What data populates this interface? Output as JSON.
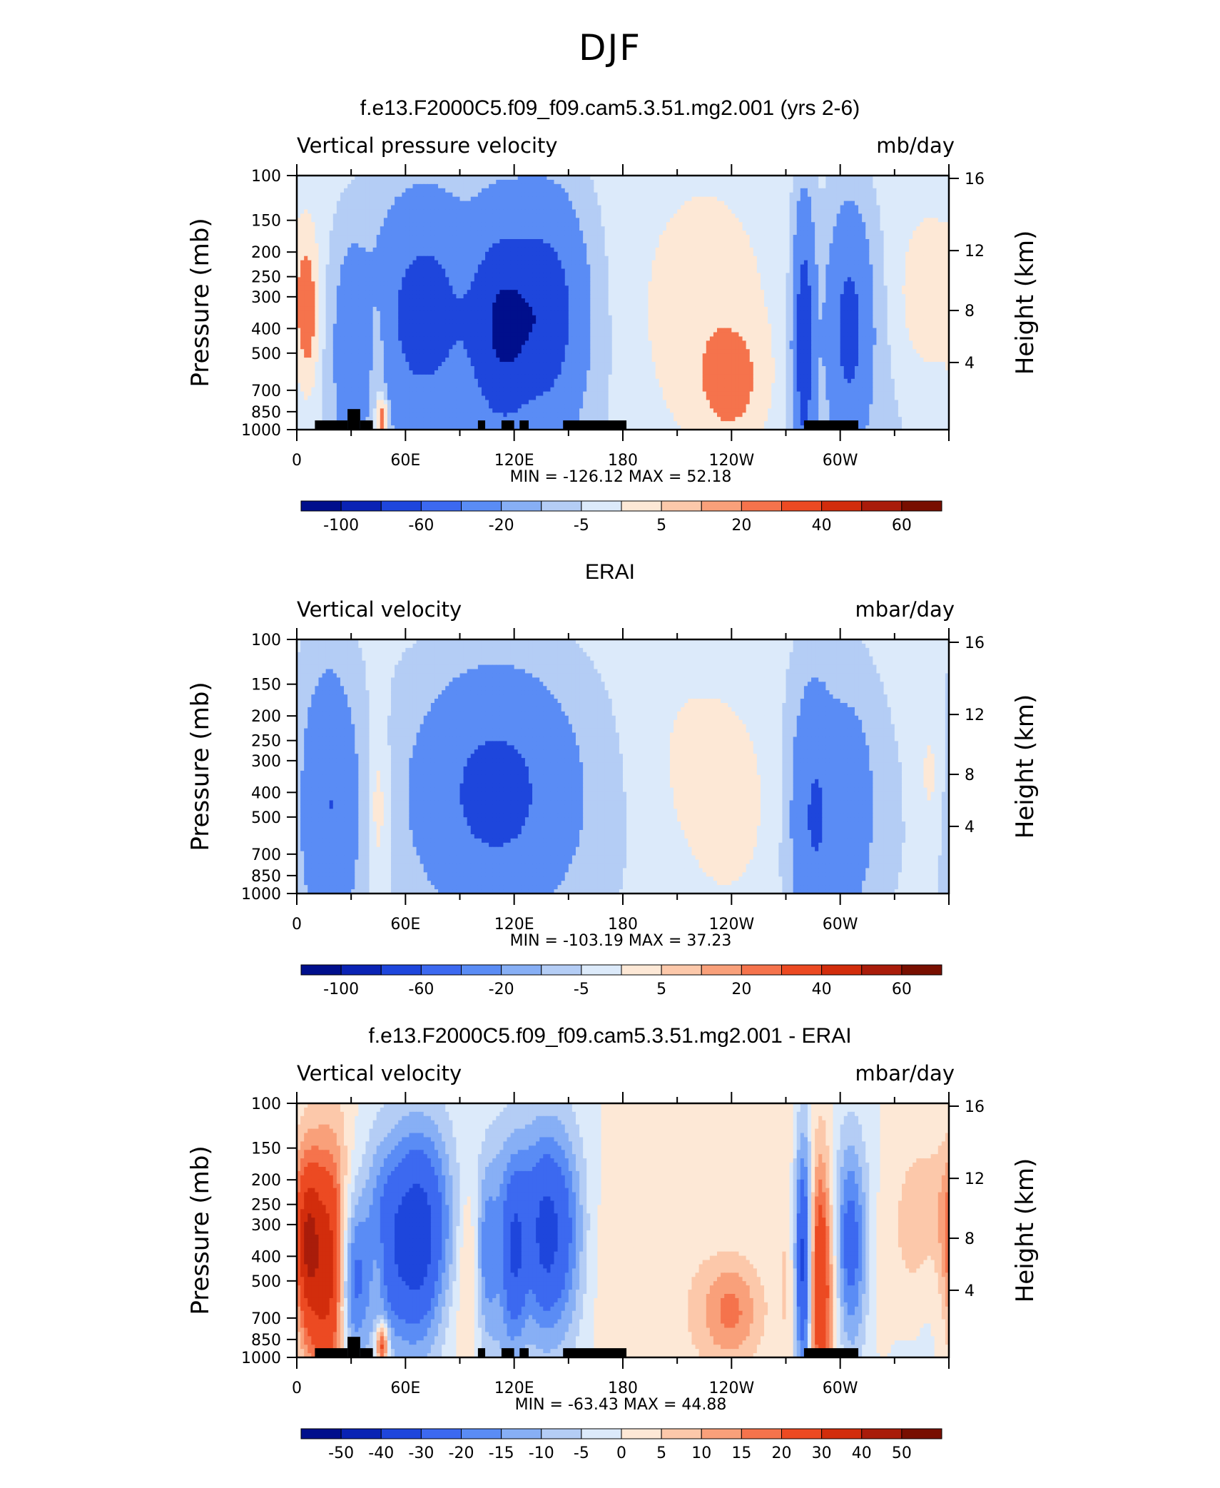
{
  "title": "DJF",
  "panels": [
    {
      "title": "f.e13.F2000C5.f09_f09.cam5.3.51.mg2.001 (yrs 2-6)",
      "variable": "Vertical pressure velocity",
      "units": "mb/day",
      "min": "-126.12",
      "max": "52.18",
      "colorbar_labels": [
        "-100",
        "-60",
        "-20",
        "-5",
        "5",
        "20",
        "40",
        "60"
      ],
      "field": "model"
    },
    {
      "title": "ERAI",
      "variable": "Vertical velocity",
      "units": "mbar/day",
      "min": "-103.19",
      "max": "37.23",
      "colorbar_labels": [
        "-100",
        "-60",
        "-20",
        "-5",
        "5",
        "20",
        "40",
        "60"
      ],
      "field": "obs"
    },
    {
      "title": "f.e13.F2000C5.f09_f09.cam5.3.51.mg2.001 - ERAI",
      "variable": "Vertical velocity",
      "units": "mbar/day",
      "min": "-63.43",
      "max": "44.88",
      "colorbar_labels": [
        "-50",
        "-40",
        "-30",
        "-20",
        "-15",
        "-10",
        "-5",
        "0",
        "5",
        "10",
        "15",
        "20",
        "30",
        "40",
        "50"
      ],
      "field": "diff"
    }
  ],
  "axes": {
    "ylabel_left": "Pressure (mb)",
    "ylabel_right": "Height (km)",
    "pressure_ticks": [
      "100",
      "150",
      "200",
      "250",
      "300",
      "400",
      "500",
      "700",
      "850",
      "1000"
    ],
    "height_ticks": [
      "16",
      "12",
      "8",
      "4"
    ],
    "longitude_ticks": [
      "0",
      "60E",
      "120E",
      "180",
      "120W",
      "60W"
    ],
    "min_label": "MIN",
    "max_label": "MAX"
  },
  "chart_data": [
    {
      "type": "heatmap",
      "title": "f.e13.F2000C5.f09_f09.cam5.3.51.mg2.001 (yrs 2-6)",
      "xlabel": "",
      "ylabel": "Pressure (mb)",
      "y2label": "Height (km)",
      "x_ticks": [
        "0",
        "60E",
        "120E",
        "180",
        "120W",
        "60W"
      ],
      "y_ticks": [
        100,
        150,
        200,
        250,
        300,
        400,
        500,
        700,
        850,
        1000
      ],
      "y2_ticks": [
        16,
        12,
        8,
        4
      ],
      "min": -126.12,
      "max": 52.18,
      "contour_levels": [
        -100,
        -60,
        -20,
        -5,
        5,
        20,
        40,
        60
      ],
      "features_lon_deg": {
        "strong_ascent": [
          30,
          65,
          95,
          110,
          125,
          150,
          280,
          300
        ],
        "descent": [
          5,
          45,
          200,
          230,
          345
        ]
      }
    },
    {
      "type": "heatmap",
      "title": "ERAI",
      "xlabel": "",
      "ylabel": "Pressure (mb)",
      "y2label": "Height (km)",
      "x_ticks": [
        "0",
        "60E",
        "120E",
        "180",
        "120W",
        "60W"
      ],
      "y_ticks": [
        100,
        150,
        200,
        250,
        300,
        400,
        500,
        700,
        850,
        1000
      ],
      "y2_ticks": [
        16,
        12,
        8,
        4
      ],
      "min": -103.19,
      "max": 37.23,
      "contour_levels": [
        -100,
        -60,
        -20,
        -5,
        5,
        20,
        40,
        60
      ],
      "features_lon_deg": {
        "strong_ascent": [
          15,
          90,
          110,
          140,
          285,
          300
        ],
        "descent": [
          45,
          210,
          240,
          350
        ]
      }
    },
    {
      "type": "heatmap",
      "title": "f.e13.F2000C5.f09_f09.cam5.3.51.mg2.001 - ERAI",
      "xlabel": "",
      "ylabel": "Pressure (mb)",
      "y2label": "Height (km)",
      "x_ticks": [
        "0",
        "60E",
        "120E",
        "180",
        "120W",
        "60W"
      ],
      "y_ticks": [
        100,
        150,
        200,
        250,
        300,
        400,
        500,
        700,
        850,
        1000
      ],
      "y2_ticks": [
        16,
        12,
        8,
        4
      ],
      "min": -63.43,
      "max": 44.88,
      "contour_levels": [
        -50,
        -40,
        -30,
        -20,
        -15,
        -10,
        -5,
        0,
        5,
        10,
        15,
        20,
        30,
        40,
        50
      ],
      "features_lon_deg": {
        "negative": [
          35,
          55,
          118,
          280,
          318
        ],
        "positive": [
          10,
          100,
          112,
          128,
          175,
          210,
          340
        ]
      }
    }
  ],
  "colors": {
    "palette": [
      "#000f8c",
      "#0a23b4",
      "#1e46dc",
      "#3c69f0",
      "#5a8cf5",
      "#87aff5",
      "#b4cdf5",
      "#dceafa",
      "#fde8d6",
      "#fcc8aa",
      "#f9a07a",
      "#f5734c",
      "#ec4a22",
      "#d22d0c",
      "#a91c0a",
      "#780f00"
    ],
    "terrain": "#000000"
  }
}
